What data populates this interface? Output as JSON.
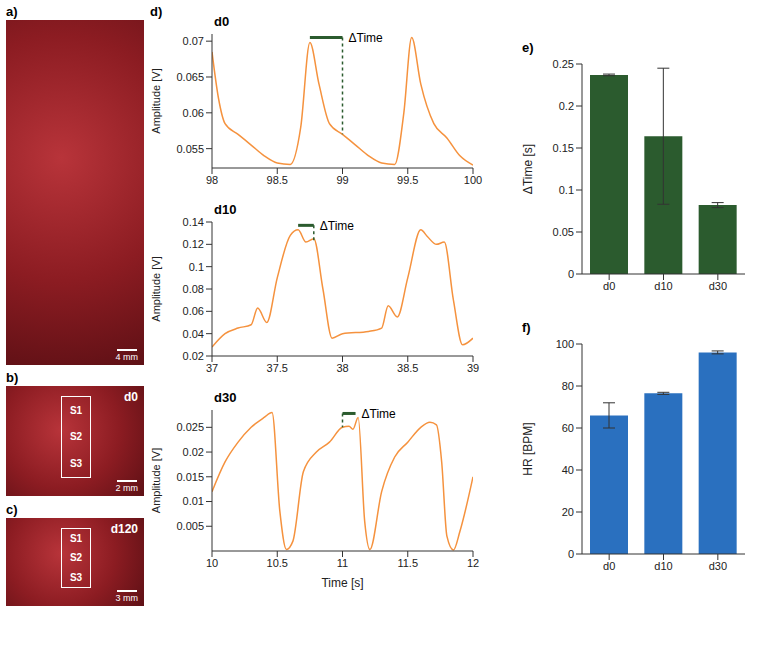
{
  "photos": [
    {
      "panel": "a)",
      "scale_bar": "4 mm"
    },
    {
      "panel": "b)",
      "title": "d0",
      "sites": [
        "S1",
        "S2",
        "S3"
      ],
      "scale_bar": "2 mm"
    },
    {
      "panel": "c)",
      "title": "d120",
      "sites": [
        "S1",
        "S2",
        "S3"
      ],
      "scale_bar": "3 mm"
    }
  ],
  "chart_data": [
    {
      "type": "line",
      "panel": "d)",
      "title": "d0",
      "color": "#f5923e",
      "y_label": "Amplitude [V]",
      "x": [
        98,
        98.05,
        98.1,
        98.2,
        98.3,
        98.4,
        98.5,
        98.6,
        98.68,
        98.75,
        98.82,
        98.9,
        99.0,
        99.1,
        99.2,
        99.3,
        99.4,
        99.47,
        99.53,
        99.6,
        99.7,
        99.8,
        99.9,
        100
      ],
      "values": [
        0.0685,
        0.062,
        0.0585,
        0.057,
        0.0555,
        0.054,
        0.053,
        0.0528,
        0.058,
        0.0698,
        0.064,
        0.0585,
        0.057,
        0.0555,
        0.054,
        0.053,
        0.0528,
        0.06,
        0.0705,
        0.064,
        0.0585,
        0.0565,
        0.054,
        0.0527
      ],
      "xlim": [
        98,
        100
      ],
      "xticks": [
        98,
        98.5,
        99,
        99.5,
        100
      ],
      "ylim": [
        0.0523,
        0.071
      ],
      "yticks": [
        0.055,
        0.06,
        0.065,
        0.07
      ],
      "annotation": {
        "text": "ΔTime",
        "color": "#2b5b2e",
        "x_start": 98.75,
        "x_end": 99.0,
        "y": 0.0705,
        "dash_x": 99.0,
        "dash_y_end": 0.057
      }
    },
    {
      "type": "line",
      "title": "d10",
      "color": "#f5923e",
      "y_label": "Amplitude [V]",
      "x": [
        37,
        37.1,
        37.2,
        37.3,
        37.35,
        37.42,
        37.5,
        37.6,
        37.66,
        37.72,
        37.78,
        37.85,
        37.92,
        38,
        38.2,
        38.3,
        38.35,
        38.42,
        38.5,
        38.6,
        38.65,
        38.72,
        38.78,
        38.85,
        38.92,
        39
      ],
      "values": [
        0.028,
        0.04,
        0.045,
        0.048,
        0.063,
        0.05,
        0.09,
        0.128,
        0.133,
        0.122,
        0.125,
        0.08,
        0.036,
        0.04,
        0.042,
        0.045,
        0.065,
        0.055,
        0.09,
        0.133,
        0.127,
        0.12,
        0.122,
        0.07,
        0.03,
        0.036
      ],
      "xlim": [
        37,
        39
      ],
      "xticks": [
        37,
        37.5,
        38,
        38.5,
        39
      ],
      "ylim": [
        0.02,
        0.14
      ],
      "yticks": [
        0.02,
        0.04,
        0.06,
        0.08,
        0.1,
        0.12,
        0.14
      ],
      "annotation": {
        "text": "ΔTime",
        "color": "#2b5b2e",
        "x_start": 37.66,
        "x_end": 37.78,
        "y": 0.137,
        "dash_x": 37.78,
        "dash_y_end": 0.123
      }
    },
    {
      "type": "line",
      "title": "d30",
      "color": "#f5923e",
      "y_label": "Amplitude [V]",
      "x_label": "Time [s]",
      "x": [
        10,
        10.1,
        10.2,
        10.3,
        10.4,
        10.46,
        10.52,
        10.57,
        10.62,
        10.7,
        10.8,
        10.9,
        11.0,
        11.05,
        11.08,
        11.12,
        11.17,
        11.21,
        11.3,
        11.4,
        11.5,
        11.6,
        11.67,
        11.72,
        11.76,
        11.8,
        11.85,
        11.9,
        12
      ],
      "values": [
        0.012,
        0.018,
        0.022,
        0.025,
        0.027,
        0.028,
        0.008,
        0.0003,
        0.002,
        0.016,
        0.02,
        0.022,
        0.025,
        0.0252,
        0.0246,
        0.027,
        0.006,
        0.0003,
        0.012,
        0.019,
        0.022,
        0.025,
        0.026,
        0.0255,
        0.018,
        0.003,
        0.0002,
        0.004,
        0.015
      ],
      "xlim": [
        10,
        12
      ],
      "xticks": [
        10,
        10.5,
        11,
        11.5,
        12
      ],
      "ylim": [
        0,
        0.0285
      ],
      "yticks": [
        0.005,
        0.01,
        0.015,
        0.02,
        0.025
      ],
      "annotation": {
        "text": "ΔTime",
        "color": "#2b5b2e",
        "x_start": 11.0,
        "x_end": 11.1,
        "y": 0.0278,
        "dash_x": 11.0,
        "dash_y_end": 0.025
      }
    },
    {
      "type": "bar",
      "panel": "e)",
      "y_label": "ΔTime [s]",
      "color": "#2b5b2e",
      "categories": [
        "d0",
        "d10",
        "d30"
      ],
      "values": [
        0.237,
        0.164,
        0.082
      ],
      "errors": [
        0.001,
        0.081,
        0.003
      ],
      "ylim": [
        0,
        0.25
      ],
      "yticks": [
        0,
        0.05,
        0.1,
        0.15,
        0.2,
        0.25
      ]
    },
    {
      "type": "bar",
      "panel": "f)",
      "y_label": "HR [BPM]",
      "color": "#2a70bf",
      "categories": [
        "d0",
        "d10",
        "d30"
      ],
      "values": [
        66,
        76.5,
        96
      ],
      "errors": [
        6,
        0.5,
        0.7
      ],
      "ylim": [
        0,
        100
      ],
      "yticks": [
        0,
        20,
        40,
        60,
        80,
        100
      ]
    }
  ]
}
